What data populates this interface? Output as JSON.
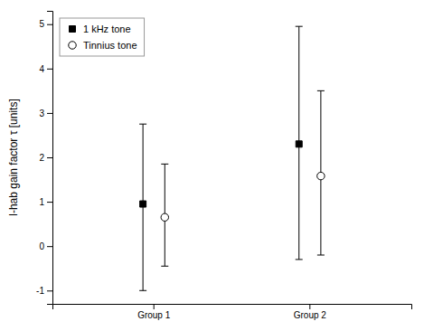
{
  "chart_data": {
    "type": "errorbar",
    "y_label": "l-hab gain factor τ [units]",
    "categories": [
      "Group 1",
      "Group 2"
    ],
    "series": [
      {
        "name": "1 kHz tone",
        "marker": "square",
        "color": "#000000",
        "values": [
          0.95,
          2.3
        ],
        "yerr_lower": [
          1.95,
          2.6
        ],
        "yerr_upper": [
          1.8,
          2.65
        ]
      },
      {
        "name": "Tinnius tone",
        "marker": "circle",
        "color": "#ffffff",
        "values": [
          0.65,
          1.58
        ],
        "yerr_lower": [
          1.1,
          1.78
        ],
        "yerr_upper": [
          1.2,
          1.92
        ]
      }
    ],
    "ylim": [
      -1.3,
      5.3
    ],
    "yticks": [
      -1,
      0,
      1,
      2,
      3,
      4,
      5
    ],
    "grid": false,
    "legend": "upper-left"
  }
}
